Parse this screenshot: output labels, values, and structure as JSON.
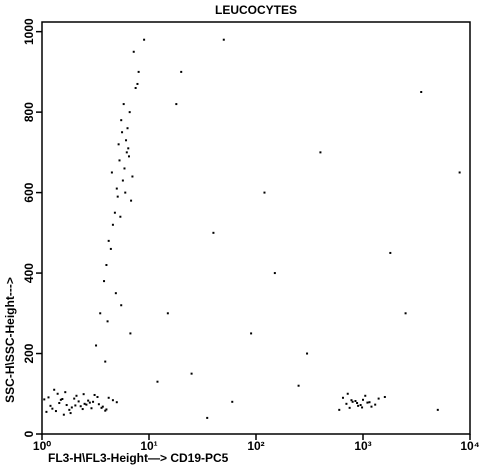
{
  "chart_data": {
    "type": "scatter",
    "title": "LEUCOCYTES",
    "x_label": "FL3-H\\FL3-Height—> CD19-PC5",
    "y_label": "SSC-H\\SSC-Height--->",
    "x_log": true,
    "xlim": [
      1,
      10000
    ],
    "xticks": [
      {
        "value": 1,
        "label": "10⁰"
      },
      {
        "value": 10,
        "label": "10¹"
      },
      {
        "value": 100,
        "label": "10²"
      },
      {
        "value": 1000,
        "label": "10³"
      },
      {
        "value": 10000,
        "label": "10⁴"
      }
    ],
    "ylim": [
      0,
      1024
    ],
    "yticks": [
      0,
      200,
      400,
      600,
      800,
      1000
    ],
    "color": "#000000",
    "x": [
      1.2,
      1.5,
      1.8,
      2.1,
      2.5,
      3.0,
      3.6,
      4.2,
      1.1,
      1.4,
      1.7,
      2.0,
      2.4,
      2.8,
      3.3,
      3.9,
      4.6,
      1.3,
      1.6,
      1.9,
      2.2,
      2.6,
      3.1,
      3.7,
      1.05,
      1.25,
      1.45,
      1.65,
      1.85,
      2.3,
      2.7,
      3.4,
      4.0,
      5.0,
      1.15,
      1.35,
      1.55,
      2.05,
      2.45,
      2.9,
      4.5,
      5.2,
      6.0,
      5.5,
      4.8,
      6.5,
      7.0,
      5.8,
      4.2,
      6.2,
      5.0,
      5.6,
      6.8,
      7.5,
      4.0,
      5.3,
      6.1,
      8.0,
      4.6,
      5.9,
      6.4,
      7.2,
      3.8,
      5.1,
      6.6,
      9.0,
      4.4,
      5.7,
      6.3,
      7.8,
      3.5,
      5.4,
      3.2,
      4.1,
      5.5,
      6.7,
      3.9,
      4.9,
      700,
      800,
      900,
      1000,
      1100,
      650,
      750,
      850,
      950,
      1200,
      1400,
      600,
      1050,
      880,
      780,
      1300,
      720,
      980,
      1150,
      1600,
      15,
      25,
      40,
      60,
      90,
      150,
      250,
      400,
      2500,
      3500,
      20,
      35,
      120,
      300,
      5000,
      1800,
      8000,
      12,
      18,
      50
    ],
    "values": [
      70,
      85,
      60,
      95,
      75,
      80,
      65,
      90,
      55,
      100,
      72,
      88,
      62,
      78,
      92,
      58,
      84,
      110,
      48,
      66,
      81,
      73,
      97,
      68,
      86,
      63,
      77,
      104,
      52,
      69,
      83,
      74,
      61,
      79,
      91,
      57,
      87,
      71,
      99,
      64,
      650,
      720,
      600,
      780,
      550,
      690,
      640,
      820,
      480,
      700,
      610,
      750,
      580,
      860,
      420,
      680,
      730,
      900,
      520,
      660,
      710,
      950,
      380,
      590,
      800,
      980,
      460,
      630,
      760,
      870,
      300,
      540,
      220,
      280,
      320,
      250,
      180,
      350,
      75,
      80,
      70,
      85,
      78,
      90,
      65,
      82,
      72,
      68,
      88,
      60,
      95,
      77,
      84,
      73,
      100,
      66,
      79,
      92,
      300,
      150,
      500,
      80,
      250,
      400,
      120,
      700,
      300,
      850,
      900,
      40,
      600,
      200,
      60,
      450,
      650,
      130,
      820,
      980
    ]
  }
}
